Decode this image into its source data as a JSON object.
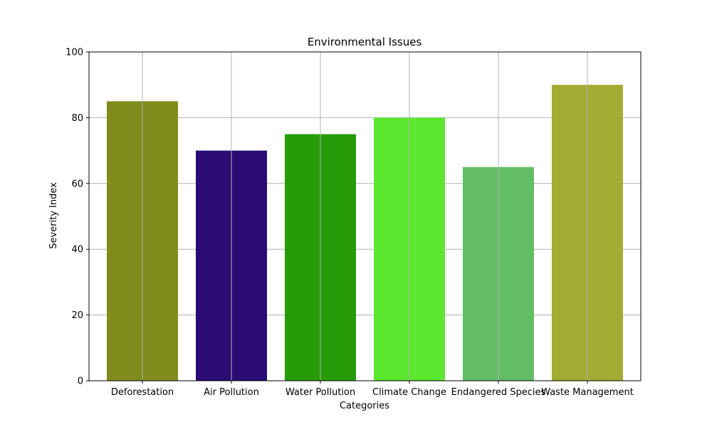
{
  "chart_data": {
    "type": "bar",
    "title": "Environmental Issues",
    "xlabel": "Categories",
    "ylabel": "Severity Index",
    "categories": [
      "Deforestation",
      "Air Pollution",
      "Water Pollution",
      "Climate Change",
      "Endangered Species",
      "Waste Management"
    ],
    "values": [
      85,
      70,
      75,
      80,
      65,
      90
    ],
    "colors": [
      "#808c1b",
      "#2b0c74",
      "#289b08",
      "#5ce82e",
      "#63bd65",
      "#a3ac32"
    ],
    "ylim": [
      0,
      100
    ],
    "yticks": [
      0,
      20,
      40,
      60,
      80,
      100
    ],
    "grid": true,
    "grid_color": "#b0b0b0"
  }
}
